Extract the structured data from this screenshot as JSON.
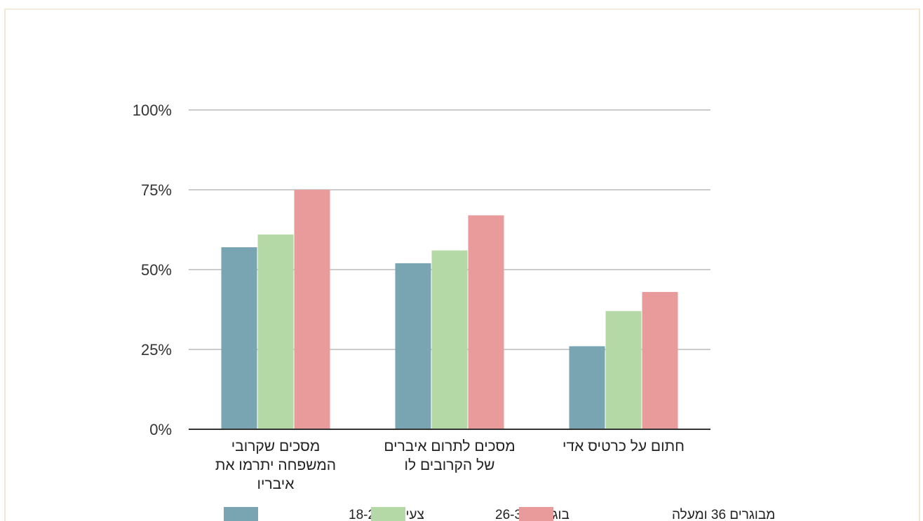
{
  "chart_data": {
    "type": "bar",
    "categories": [
      [
        "מסכים שקרובי",
        "המשפחה יתרמו את",
        "איבריו"
      ],
      [
        "מסכים לתרום איברים",
        "של הקרובים לו"
      ],
      [
        "חתום על כרטיס אדי"
      ]
    ],
    "series": [
      {
        "name": "צעירים 18-25",
        "color": "#78a5b1",
        "values": [
          57,
          52,
          26
        ]
      },
      {
        "name": "בוגרים 26-35",
        "color": "#b5d9a6",
        "values": [
          61,
          56,
          37
        ]
      },
      {
        "name": "מבוגרים 36 ומעלה",
        "color": "#e99a9a",
        "values": [
          75,
          67,
          43
        ]
      }
    ],
    "ylim": [
      0,
      100
    ],
    "yticks": [
      0,
      25,
      50,
      75,
      100
    ],
    "ytick_labels": [
      "0%",
      "25%",
      "50%",
      "75%",
      "100%"
    ],
    "grid": true,
    "legend_position": "bottom"
  }
}
